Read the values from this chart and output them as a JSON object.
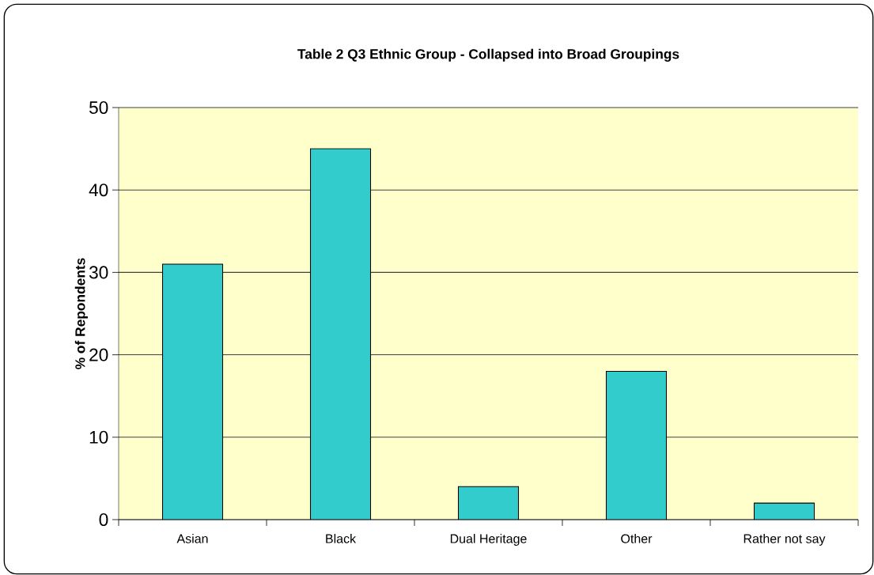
{
  "chart_data": {
    "type": "bar",
    "title": "Table 2 Q3 Ethnic Group - Collapsed into Broad Groupings",
    "ylabel": "% of Repondents",
    "categories": [
      "Asian",
      "Black",
      "Dual Heritage",
      "Other",
      "Rather not say"
    ],
    "values": [
      31,
      45,
      4,
      18,
      2
    ],
    "color": "#33cccc",
    "ylim": [
      0,
      50
    ],
    "yticks": [
      0,
      10,
      20,
      30,
      40,
      50
    ],
    "grid": "y"
  }
}
